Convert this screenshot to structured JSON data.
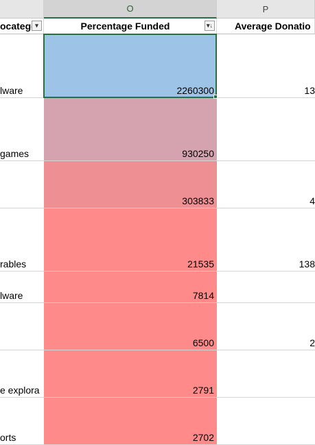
{
  "column_headers": {
    "o": "O",
    "p": "P"
  },
  "headers": {
    "n": "ocatego",
    "o": "Percentage Funded",
    "p": "Average Donatio",
    "n_filter_icon": "filter-dropdown-icon",
    "o_filter_icon": "sort-descending-filter-icon"
  },
  "rows": [
    {
      "n": "lware",
      "o": "2260300",
      "p": "13",
      "fill": "#9dc3e6"
    },
    {
      "n": "games",
      "o": "930250",
      "p": "",
      "fill": "#d5a3b0"
    },
    {
      "n": "",
      "o": "303833",
      "p": "4",
      "fill": "#ee8f93"
    },
    {
      "n": "rables",
      "o": "21535",
      "p": "138",
      "fill": "#ff8a8a"
    },
    {
      "n": "lware",
      "o": "7814",
      "p": "",
      "fill": "#ff8a8a"
    },
    {
      "n": "",
      "o": "6500",
      "p": "2",
      "fill": "#ff8a8a"
    },
    {
      "n": "e explora",
      "o": "2791",
      "p": "",
      "fill": "#ff8a8a"
    },
    {
      "n": "orts",
      "o": "2702",
      "p": "",
      "fill": "#ff8a8a"
    }
  ],
  "colors": {
    "selection_border": "#217346",
    "header_bg": "#e6e6e6"
  }
}
